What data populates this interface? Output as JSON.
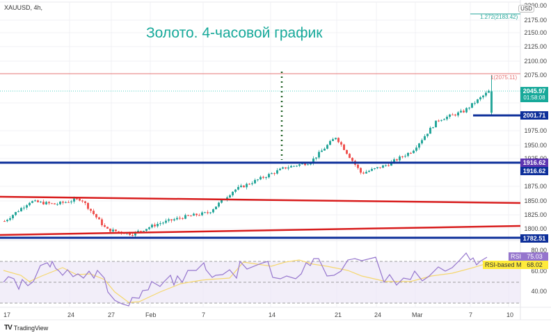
{
  "header": {
    "symbol": "XAUUSD, 4h,",
    "currency": "USD"
  },
  "annotation": {
    "title": "Золото. 4-часовой график",
    "color": "#17a99a"
  },
  "price_axis": {
    "ticks": [
      "2200.00",
      "2175.00",
      "2150.00",
      "2125.00",
      "2100.00",
      "2075.00",
      "2025.00",
      "1975.00",
      "1950.00",
      "1925.00",
      "1875.00",
      "1850.00",
      "1825.00",
      "1800.00"
    ]
  },
  "price_tags": {
    "last_price": "2045.97",
    "countdown": "01:58:08",
    "level_2001": "2001.71",
    "level_1916_a": "1916.62",
    "level_1916_b": "1916.62",
    "level_1782": "1782.51"
  },
  "fib_labels": {
    "f1272": "1.272(2183.42)",
    "f1": "1(2075.11)"
  },
  "rsi": {
    "label": "RSI",
    "value": "75.03",
    "ma_label": "RSI-based MA",
    "ma_value": "68.02",
    "ticks": [
      "80.00",
      "60.00",
      "40.00"
    ]
  },
  "time_axis": {
    "labels": [
      "17",
      "24",
      "27",
      "Feb",
      "7",
      "14",
      "21",
      "24",
      "Mar",
      "7",
      "10"
    ]
  },
  "brand": {
    "logo": "TV",
    "name": "TradingView"
  },
  "colors": {
    "up": "#26a69a",
    "down": "#ef5350",
    "support": "#0d2f9a",
    "trend": "#d81b1b",
    "rsi": "#9575cd",
    "rsi_ma": "#f5d76e"
  },
  "chart_data": {
    "type": "candlestick",
    "title": "Золото. 4-часовой график",
    "symbol": "XAUUSD",
    "timeframe": "4h",
    "x_labels": [
      "17",
      "24",
      "27",
      "Feb",
      "7",
      "14",
      "21",
      "24",
      "Mar",
      "7",
      "10"
    ],
    "ylim": [
      1775,
      2200
    ],
    "last_price": 2045.97,
    "high_marker": 2075.11,
    "horizontal_levels": [
      2001.71,
      1916.62,
      1782.51
    ],
    "fib_levels": [
      {
        "ratio": 1,
        "price": 2075.11
      },
      {
        "ratio": 1.272,
        "price": 2183.42
      }
    ],
    "trendlines": [
      {
        "name": "upper-channel",
        "from": 1858,
        "to": 1846
      },
      {
        "name": "lower-channel",
        "from": 1790,
        "to": 1805
      }
    ],
    "approx_close_path": [
      {
        "x": "17",
        "close": 1815
      },
      {
        "x": "20",
        "close": 1850
      },
      {
        "x": "24",
        "close": 1845
      },
      {
        "x": "26",
        "close": 1855
      },
      {
        "x": "27",
        "close": 1800
      },
      {
        "x": "29",
        "close": 1792
      },
      {
        "x": "Feb 1",
        "close": 1810
      },
      {
        "x": "7",
        "close": 1822
      },
      {
        "x": "10",
        "close": 1830
      },
      {
        "x": "14",
        "close": 1870
      },
      {
        "x": "17",
        "close": 1890
      },
      {
        "x": "21",
        "close": 1910
      },
      {
        "x": "23",
        "close": 1920
      },
      {
        "x": "24",
        "close": 1965
      },
      {
        "x": "26",
        "close": 1900
      },
      {
        "x": "Mar 1",
        "close": 1915
      },
      {
        "x": "3",
        "close": 1940
      },
      {
        "x": "5",
        "close": 1995
      },
      {
        "x": "7",
        "close": 2010
      },
      {
        "x": "8",
        "close": 2045.97
      }
    ],
    "rsi": {
      "value": 75.03,
      "ma": 68.02,
      "levels": [
        70,
        50,
        30
      ],
      "ylim": [
        25,
        85
      ]
    }
  }
}
